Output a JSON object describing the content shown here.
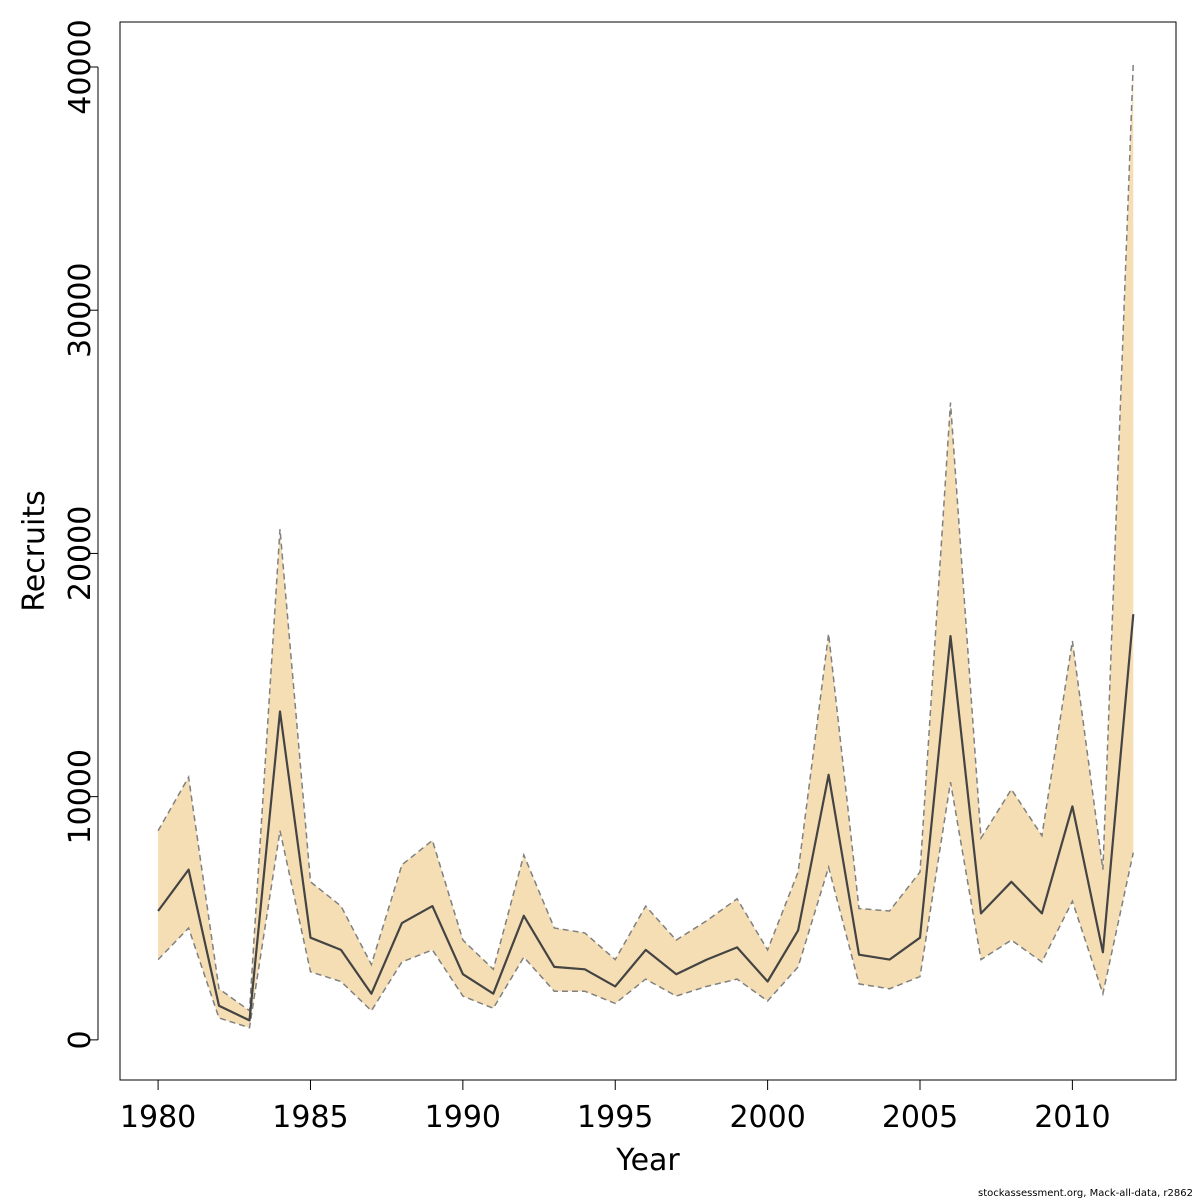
{
  "chart_data": {
    "type": "line",
    "x": [
      1980,
      1981,
      1982,
      1983,
      1984,
      1985,
      1986,
      1987,
      1988,
      1989,
      1990,
      1991,
      1992,
      1993,
      1994,
      1995,
      1996,
      1997,
      1998,
      1999,
      2000,
      2001,
      2002,
      2003,
      2004,
      2005,
      2006,
      2007,
      2008,
      2009,
      2010,
      2011,
      2012
    ],
    "series": [
      {
        "role": "estimate",
        "values": [
          5300,
          7000,
          1400,
          800,
          13500,
          4200,
          3700,
          1900,
          4800,
          5500,
          2700,
          1900,
          5100,
          3000,
          2900,
          2200,
          3700,
          2700,
          3300,
          3800,
          2400,
          4500,
          10900,
          3500,
          3300,
          4200,
          16600,
          5200,
          6500,
          5200,
          9600,
          3600,
          17500
        ]
      },
      {
        "role": "upper",
        "values": [
          8600,
          10800,
          2100,
          1200,
          21000,
          6500,
          5500,
          3100,
          7200,
          8200,
          4100,
          2900,
          7600,
          4600,
          4400,
          3300,
          5500,
          4100,
          4900,
          5800,
          3700,
          6900,
          16700,
          5400,
          5300,
          6900,
          26200,
          8300,
          10300,
          8400,
          16400,
          7000,
          40200
        ]
      },
      {
        "role": "lower",
        "values": [
          3300,
          4600,
          900,
          500,
          8600,
          2800,
          2400,
          1200,
          3200,
          3700,
          1800,
          1300,
          3400,
          2000,
          2000,
          1500,
          2500,
          1800,
          2200,
          2500,
          1600,
          3000,
          7100,
          2300,
          2100,
          2600,
          10600,
          3300,
          4100,
          3200,
          5700,
          1900,
          7700
        ]
      }
    ],
    "xlabel": "Year",
    "ylabel": "Recruits",
    "xlim": [
      1978.75,
      2013.4
    ],
    "ylim": [
      -1650,
      41850
    ],
    "xticks": [
      1980,
      1985,
      1990,
      1995,
      2000,
      2005,
      2010
    ],
    "yticks": [
      0,
      10000,
      20000,
      30000,
      40000
    ],
    "colors": {
      "band": "#f5deb3",
      "line": "#444444",
      "bounds": "#808080"
    },
    "grid": false,
    "footer": "stockassessment.org, Mack-all-data, r2862"
  }
}
